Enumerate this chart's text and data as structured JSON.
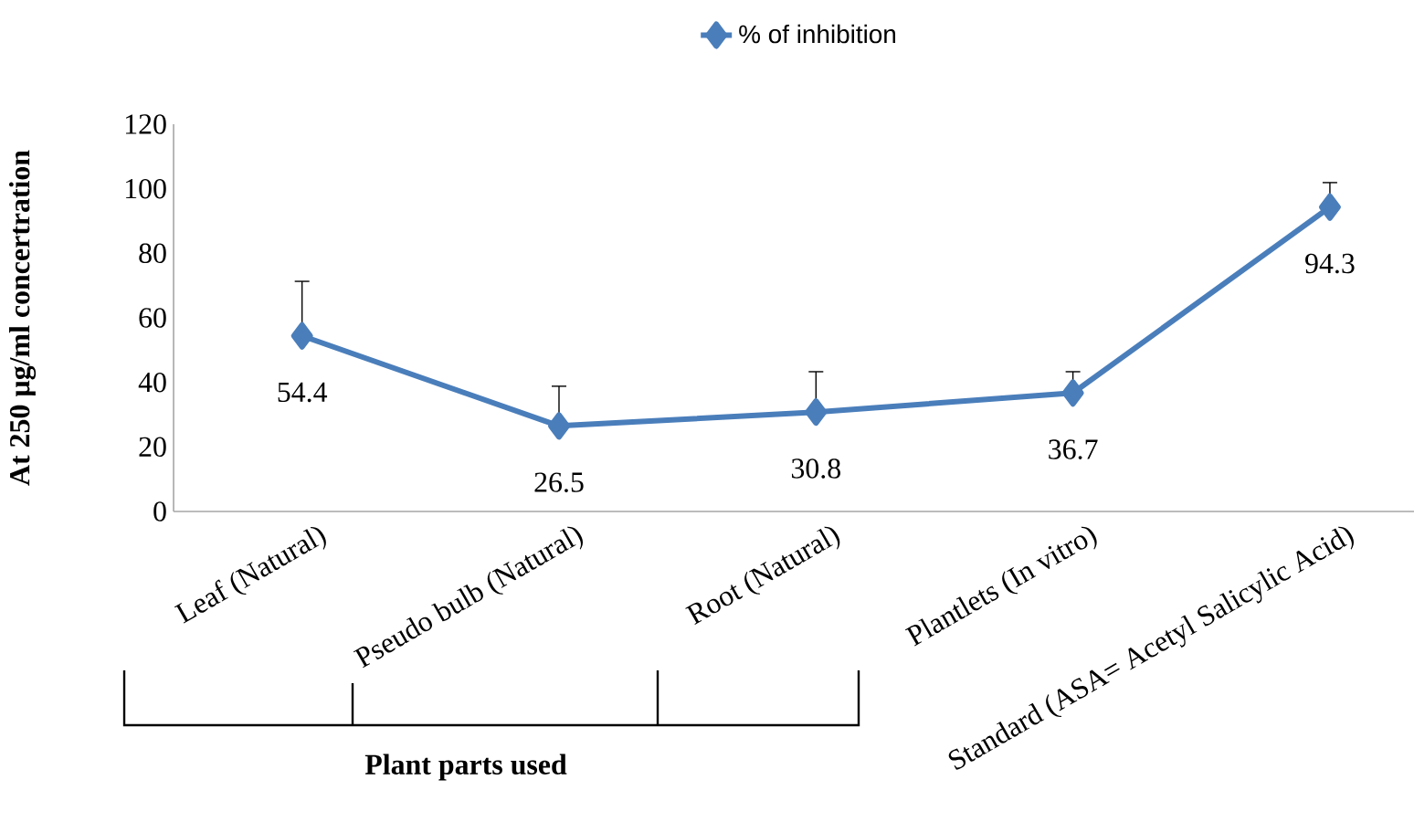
{
  "chart_data": {
    "type": "line",
    "categories": [
      "Leaf (Natural)",
      "Pseudo bulb (Natural)",
      "Root (Natural)",
      "Plantlets (In vitro)",
      "Standard  (ASA= Acetyl Salicylic Acid)"
    ],
    "series": [
      {
        "name": "% of inhibition",
        "color": "#4a7ebb",
        "values": [
          54.4,
          26.5,
          30.8,
          36.7,
          94.3
        ],
        "errors": [
          [
            54.4,
            71.3
          ],
          [
            26.5,
            38.8
          ],
          [
            30.8,
            43.3
          ],
          [
            36.7,
            43.3
          ],
          [
            94.3,
            101.9
          ]
        ]
      }
    ],
    "ylabel": "At 250 µg/ml concertration",
    "annotations": [
      "Plant parts used"
    ],
    "ylim": [
      0,
      120
    ],
    "yticks": [
      0,
      20,
      40,
      60,
      80,
      100,
      120
    ],
    "data_labels": true,
    "legend": "top",
    "marker": "diamond",
    "line_style": "solid",
    "grid": false
  }
}
